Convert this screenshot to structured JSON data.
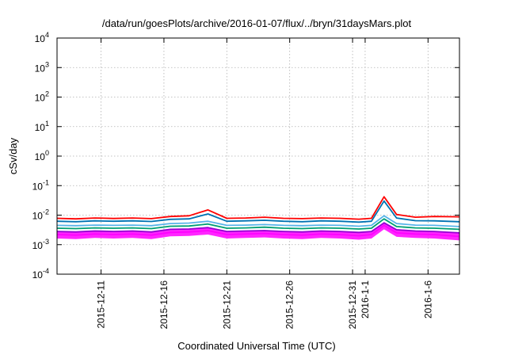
{
  "chart_data": {
    "type": "line",
    "title": "/data/run/goesPlots/archive/2016-01-07/flux/../bryn/31daysMars.plot",
    "xlabel": "Coordinated Universal Time (UTC)",
    "ylabel": "cSv/day",
    "y_scale": "log",
    "ylim": [
      0.0001,
      10000
    ],
    "y_ticks": [
      {
        "value": 0.0001,
        "base": "10",
        "exp": "-4"
      },
      {
        "value": 0.001,
        "base": "10",
        "exp": "-3"
      },
      {
        "value": 0.01,
        "base": "10",
        "exp": "-2"
      },
      {
        "value": 0.1,
        "base": "10",
        "exp": "-1"
      },
      {
        "value": 1,
        "base": "10",
        "exp": "0"
      },
      {
        "value": 10,
        "base": "10",
        "exp": "1"
      },
      {
        "value": 100,
        "base": "10",
        "exp": "2"
      },
      {
        "value": 1000,
        "base": "10",
        "exp": "3"
      },
      {
        "value": 10000,
        "base": "10",
        "exp": "4"
      }
    ],
    "xlim": [
      "2015-12-07T12:00",
      "2016-01-08T12:00"
    ],
    "x_ticks": [
      {
        "date": "2015-12-11",
        "label": "2015-12-11"
      },
      {
        "date": "2015-12-16",
        "label": "2015-12-16"
      },
      {
        "date": "2015-12-21",
        "label": "2015-12-21"
      },
      {
        "date": "2015-12-26",
        "label": "2015-12-26"
      },
      {
        "date": "2015-12-31",
        "label": "2015-12-31"
      },
      {
        "date": "2016-01-01",
        "label": "2016-1-1"
      },
      {
        "date": "2016-01-06",
        "label": "2016-1-6"
      }
    ],
    "grid": true,
    "series": [
      {
        "color": "#ff00ff",
        "band": true,
        "points": [
          [
            "2015-12-07T12:00",
            0.0022
          ],
          [
            "2015-12-09T00:00",
            0.0021
          ],
          [
            "2015-12-10T12:00",
            0.0023
          ],
          [
            "2015-12-12T00:00",
            0.0022
          ],
          [
            "2015-12-13T12:00",
            0.0023
          ],
          [
            "2015-12-15T00:00",
            0.0021
          ],
          [
            "2015-12-16T12:00",
            0.0026
          ],
          [
            "2015-12-18T00:00",
            0.0027
          ],
          [
            "2015-12-19T12:00",
            0.003
          ],
          [
            "2015-12-21T00:00",
            0.0022
          ],
          [
            "2015-12-22T12:00",
            0.0023
          ],
          [
            "2015-12-24T00:00",
            0.0024
          ],
          [
            "2015-12-25T12:00",
            0.0022
          ],
          [
            "2015-12-27T00:00",
            0.0021
          ],
          [
            "2015-12-28T12:00",
            0.0023
          ],
          [
            "2015-12-30T00:00",
            0.0022
          ],
          [
            "2015-12-31T12:00",
            0.002
          ],
          [
            "2016-01-01T12:00",
            0.0022
          ],
          [
            "2016-01-02T12:00",
            0.0045
          ],
          [
            "2016-01-03T12:00",
            0.0025
          ],
          [
            "2016-01-05T00:00",
            0.0023
          ],
          [
            "2016-01-06T12:00",
            0.0022
          ],
          [
            "2016-01-08T12:00",
            0.0019
          ]
        ]
      },
      {
        "color": "#9400d3",
        "points": [
          [
            "2015-12-07T12:00",
            0.0028
          ],
          [
            "2015-12-09T00:00",
            0.0027
          ],
          [
            "2015-12-10T12:00",
            0.0029
          ],
          [
            "2015-12-12T00:00",
            0.0028
          ],
          [
            "2015-12-13T12:00",
            0.0029
          ],
          [
            "2015-12-15T00:00",
            0.0027
          ],
          [
            "2015-12-16T12:00",
            0.0033
          ],
          [
            "2015-12-18T00:00",
            0.0034
          ],
          [
            "2015-12-19T12:00",
            0.0038
          ],
          [
            "2015-12-21T00:00",
            0.0028
          ],
          [
            "2015-12-22T12:00",
            0.0029
          ],
          [
            "2015-12-24T00:00",
            0.003
          ],
          [
            "2015-12-25T12:00",
            0.0028
          ],
          [
            "2015-12-27T00:00",
            0.0027
          ],
          [
            "2015-12-28T12:00",
            0.0029
          ],
          [
            "2015-12-30T00:00",
            0.0028
          ],
          [
            "2015-12-31T12:00",
            0.0026
          ],
          [
            "2016-01-01T12:00",
            0.0028
          ],
          [
            "2016-01-02T12:00",
            0.0055
          ],
          [
            "2016-01-03T12:00",
            0.0032
          ],
          [
            "2016-01-05T00:00",
            0.0029
          ],
          [
            "2016-01-06T12:00",
            0.0028
          ],
          [
            "2016-01-08T12:00",
            0.0025
          ]
        ]
      },
      {
        "color": "#009e73",
        "points": [
          [
            "2015-12-07T12:00",
            0.0036
          ],
          [
            "2015-12-09T00:00",
            0.0035
          ],
          [
            "2015-12-10T12:00",
            0.0037
          ],
          [
            "2015-12-12T00:00",
            0.0036
          ],
          [
            "2015-12-13T12:00",
            0.0037
          ],
          [
            "2015-12-15T00:00",
            0.0035
          ],
          [
            "2015-12-16T12:00",
            0.0042
          ],
          [
            "2015-12-18T00:00",
            0.0043
          ],
          [
            "2015-12-19T12:00",
            0.005
          ],
          [
            "2015-12-21T00:00",
            0.0036
          ],
          [
            "2015-12-22T12:00",
            0.0037
          ],
          [
            "2015-12-24T00:00",
            0.0039
          ],
          [
            "2015-12-25T12:00",
            0.0036
          ],
          [
            "2015-12-27T00:00",
            0.0035
          ],
          [
            "2015-12-28T12:00",
            0.0037
          ],
          [
            "2015-12-30T00:00",
            0.0036
          ],
          [
            "2015-12-31T12:00",
            0.0034
          ],
          [
            "2016-01-01T12:00",
            0.0036
          ],
          [
            "2016-01-02T12:00",
            0.0075
          ],
          [
            "2016-01-03T12:00",
            0.0041
          ],
          [
            "2016-01-05T00:00",
            0.0037
          ],
          [
            "2016-01-06T12:00",
            0.0036
          ],
          [
            "2016-01-08T12:00",
            0.0033
          ]
        ]
      },
      {
        "color": "#56b4e9",
        "points": [
          [
            "2015-12-07T12:00",
            0.0045
          ],
          [
            "2015-12-09T00:00",
            0.0044
          ],
          [
            "2015-12-10T12:00",
            0.0046
          ],
          [
            "2015-12-12T00:00",
            0.0045
          ],
          [
            "2015-12-13T12:00",
            0.0046
          ],
          [
            "2015-12-15T00:00",
            0.0044
          ],
          [
            "2015-12-16T12:00",
            0.0052
          ],
          [
            "2015-12-18T00:00",
            0.0054
          ],
          [
            "2015-12-19T12:00",
            0.0062
          ],
          [
            "2015-12-21T00:00",
            0.0045
          ],
          [
            "2015-12-22T12:00",
            0.0046
          ],
          [
            "2015-12-24T00:00",
            0.0048
          ],
          [
            "2015-12-25T12:00",
            0.0045
          ],
          [
            "2015-12-27T00:00",
            0.0044
          ],
          [
            "2015-12-28T12:00",
            0.0046
          ],
          [
            "2015-12-30T00:00",
            0.0045
          ],
          [
            "2015-12-31T12:00",
            0.0042
          ],
          [
            "2016-01-01T12:00",
            0.0045
          ],
          [
            "2016-01-02T12:00",
            0.0095
          ],
          [
            "2016-01-03T12:00",
            0.0052
          ],
          [
            "2016-01-05T00:00",
            0.0046
          ],
          [
            "2016-01-06T12:00",
            0.0045
          ],
          [
            "2016-01-08T12:00",
            0.0041
          ]
        ]
      },
      {
        "color": "#0072b2",
        "points": [
          [
            "2015-12-07T12:00",
            0.0062
          ],
          [
            "2015-12-09T00:00",
            0.006
          ],
          [
            "2015-12-10T12:00",
            0.0064
          ],
          [
            "2015-12-12T00:00",
            0.0062
          ],
          [
            "2015-12-13T12:00",
            0.0064
          ],
          [
            "2015-12-15T00:00",
            0.0061
          ],
          [
            "2015-12-16T12:00",
            0.0072
          ],
          [
            "2015-12-18T00:00",
            0.0075
          ],
          [
            "2015-12-19T12:00",
            0.011
          ],
          [
            "2015-12-21T00:00",
            0.0062
          ],
          [
            "2015-12-22T12:00",
            0.0064
          ],
          [
            "2015-12-24T00:00",
            0.0067
          ],
          [
            "2015-12-25T12:00",
            0.0062
          ],
          [
            "2015-12-27T00:00",
            0.006
          ],
          [
            "2015-12-28T12:00",
            0.0064
          ],
          [
            "2015-12-30T00:00",
            0.0062
          ],
          [
            "2015-12-31T12:00",
            0.0058
          ],
          [
            "2016-01-01T12:00",
            0.0062
          ],
          [
            "2016-01-02T12:00",
            0.03
          ],
          [
            "2016-01-03T12:00",
            0.008
          ],
          [
            "2016-01-05T00:00",
            0.0065
          ],
          [
            "2016-01-06T12:00",
            0.0064
          ],
          [
            "2016-01-08T12:00",
            0.006
          ]
        ]
      },
      {
        "color": "#ff0000",
        "points": [
          [
            "2015-12-07T12:00",
            0.0078
          ],
          [
            "2015-12-09T00:00",
            0.0075
          ],
          [
            "2015-12-10T12:00",
            0.008
          ],
          [
            "2015-12-12T00:00",
            0.0077
          ],
          [
            "2015-12-13T12:00",
            0.008
          ],
          [
            "2015-12-15T00:00",
            0.0076
          ],
          [
            "2015-12-16T12:00",
            0.009
          ],
          [
            "2015-12-18T00:00",
            0.0095
          ],
          [
            "2015-12-19T12:00",
            0.015
          ],
          [
            "2015-12-21T00:00",
            0.0078
          ],
          [
            "2015-12-22T12:00",
            0.008
          ],
          [
            "2015-12-24T00:00",
            0.0085
          ],
          [
            "2015-12-25T12:00",
            0.0078
          ],
          [
            "2015-12-27T00:00",
            0.0076
          ],
          [
            "2015-12-28T12:00",
            0.008
          ],
          [
            "2015-12-30T00:00",
            0.0078
          ],
          [
            "2015-12-31T12:00",
            0.0073
          ],
          [
            "2016-01-01T12:00",
            0.0078
          ],
          [
            "2016-01-02T12:00",
            0.042
          ],
          [
            "2016-01-03T12:00",
            0.0105
          ],
          [
            "2016-01-05T00:00",
            0.0085
          ],
          [
            "2016-01-06T12:00",
            0.009
          ],
          [
            "2016-01-08T12:00",
            0.0088
          ]
        ]
      }
    ]
  }
}
